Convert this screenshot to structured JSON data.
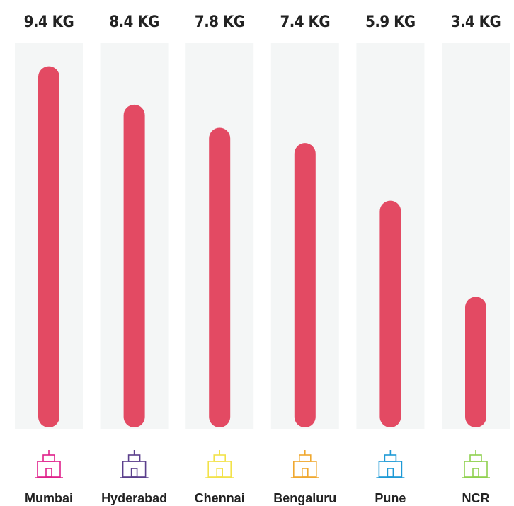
{
  "chart_data": {
    "type": "bar",
    "categories": [
      "Mumbai",
      "Hyderabad",
      "Chennai",
      "Bengaluru",
      "Pune",
      "NCR"
    ],
    "values": [
      9.4,
      8.4,
      7.8,
      7.4,
      5.9,
      3.4
    ],
    "value_labels": [
      "9.4 KG",
      "8.4 KG",
      "7.8 KG",
      "7.4 KG",
      "5.9 KG",
      "3.4 KG"
    ],
    "color": "#e34a63",
    "ylim": [
      0,
      10
    ]
  }
}
